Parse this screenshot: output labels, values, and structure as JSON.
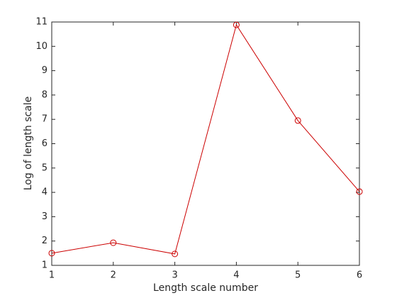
{
  "chart_data": {
    "type": "line",
    "x_label": "Length scale number",
    "y_label": "Log of length scale",
    "x": [
      1,
      2,
      3,
      4,
      5,
      6
    ],
    "series": [
      {
        "color": "#cc0000",
        "values": [
          1.5,
          1.93,
          1.47,
          10.88,
          6.95,
          4.03
        ]
      }
    ],
    "xlim": [
      1,
      6
    ],
    "xticks": [
      1,
      2,
      3,
      4,
      5,
      6
    ],
    "ylim": [
      1,
      11
    ],
    "yticks": [
      1,
      2,
      3,
      4,
      5,
      6,
      7,
      8,
      9,
      10,
      11
    ],
    "grid": false,
    "marker": "circle"
  }
}
